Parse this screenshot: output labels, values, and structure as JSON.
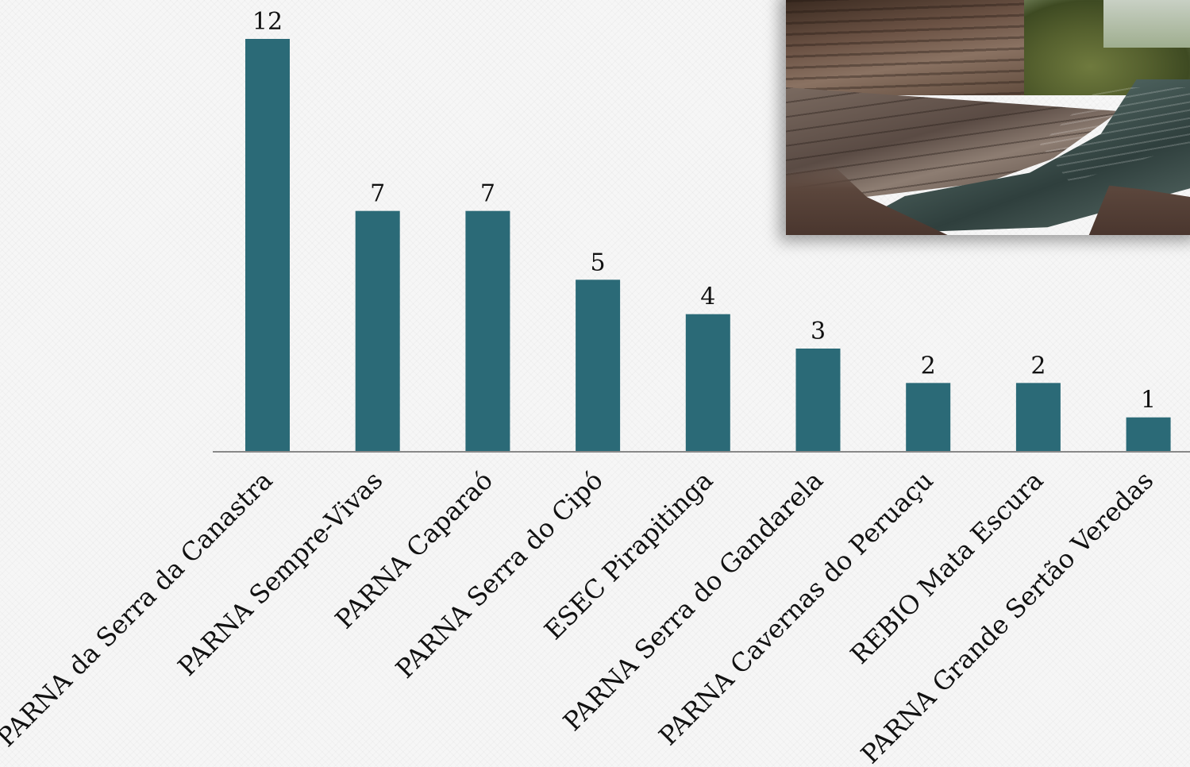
{
  "chart_data": {
    "type": "bar",
    "title": "",
    "xlabel": "",
    "ylabel": "",
    "ylim": [
      0,
      12
    ],
    "grid": false,
    "legend": "none",
    "bar_color": "#2b6a77",
    "categories": [
      "PARNA da Serra da Canastra",
      "PARNA Sempre-Vivas",
      "PARNA Caparaó",
      "PARNA Serra do Cipó",
      "ESEC Pirapitinga",
      "PARNA Serra do Gandarela",
      "PARNA Cavernas do Peruaçu",
      "REBIO Mata Escura",
      "PARNA Grande Sertão Veredas"
    ],
    "values": [
      12,
      7,
      7,
      5,
      4,
      3,
      2,
      2,
      1
    ],
    "data_labels": [
      "12",
      "7",
      "7",
      "5",
      "4",
      "3",
      "2",
      "2",
      "1"
    ]
  },
  "photo": {
    "subject": "river-with-rocks-photo"
  }
}
